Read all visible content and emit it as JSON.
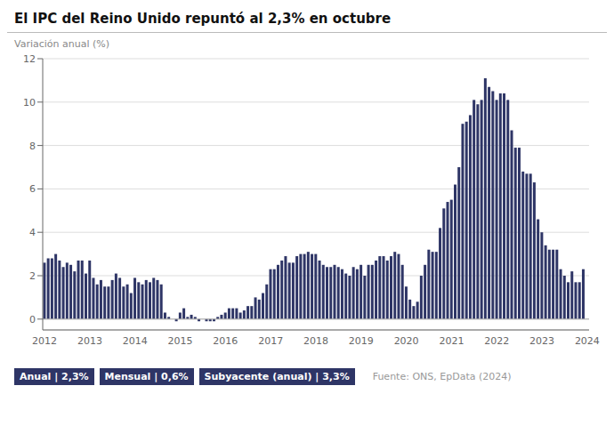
{
  "chart_data": {
    "type": "bar",
    "title": "El IPC del Reino Unido repuntó al 2,3% en octubre",
    "y_label": "Variación anual (%)",
    "color": "#2e3566",
    "ylim": [
      -0.5,
      12
    ],
    "yticks": [
      0,
      2,
      4,
      6,
      8,
      10,
      12
    ],
    "grid": true,
    "categories": [
      "2012",
      null,
      null,
      null,
      null,
      null,
      null,
      null,
      null,
      null,
      null,
      null,
      "2013",
      null,
      null,
      null,
      null,
      null,
      null,
      null,
      null,
      null,
      null,
      null,
      "2014",
      null,
      null,
      null,
      null,
      null,
      null,
      null,
      null,
      null,
      null,
      null,
      "2015",
      null,
      null,
      null,
      null,
      null,
      null,
      null,
      null,
      null,
      null,
      null,
      "2016",
      null,
      null,
      null,
      null,
      null,
      null,
      null,
      null,
      null,
      null,
      null,
      "2017",
      null,
      null,
      null,
      null,
      null,
      null,
      null,
      null,
      null,
      null,
      null,
      "2018",
      null,
      null,
      null,
      null,
      null,
      null,
      null,
      null,
      null,
      null,
      null,
      "2019",
      null,
      null,
      null,
      null,
      null,
      null,
      null,
      null,
      null,
      null,
      null,
      "2020",
      null,
      null,
      null,
      null,
      null,
      null,
      null,
      null,
      null,
      null,
      null,
      "2021",
      null,
      null,
      null,
      null,
      null,
      null,
      null,
      null,
      null,
      null,
      null,
      "2022",
      null,
      null,
      null,
      null,
      null,
      null,
      null,
      null,
      null,
      null,
      null,
      "2023",
      null,
      null,
      null,
      null,
      null,
      null,
      null,
      null,
      null,
      null,
      null,
      "2024"
    ],
    "values": [
      2.6,
      2.8,
      2.8,
      3.0,
      2.7,
      2.4,
      2.6,
      2.5,
      2.2,
      2.7,
      2.7,
      2.1,
      2.7,
      1.9,
      1.6,
      1.8,
      1.5,
      1.5,
      1.8,
      2.1,
      1.9,
      1.5,
      1.6,
      1.2,
      1.9,
      1.7,
      1.6,
      1.8,
      1.7,
      1.9,
      1.8,
      1.6,
      0.3,
      0.1,
      0.0,
      -0.1,
      0.3,
      0.5,
      0.1,
      0.2,
      0.1,
      -0.1,
      0.0,
      -0.1,
      -0.1,
      -0.1,
      0.1,
      0.2,
      0.3,
      0.5,
      0.5,
      0.5,
      0.3,
      0.4,
      0.6,
      0.6,
      1.0,
      0.9,
      1.2,
      1.6,
      2.3,
      2.3,
      2.5,
      2.7,
      2.9,
      2.6,
      2.6,
      2.9,
      3.0,
      3.0,
      3.1,
      3.0,
      3.0,
      2.7,
      2.5,
      2.4,
      2.4,
      2.5,
      2.4,
      2.3,
      2.1,
      2.0,
      2.4,
      2.3,
      2.5,
      2.0,
      2.5,
      2.5,
      2.7,
      2.9,
      2.9,
      2.7,
      2.9,
      3.1,
      3.0,
      2.5,
      1.5,
      0.9,
      0.6,
      0.8,
      2.0,
      2.5,
      3.2,
      3.1,
      3.1,
      4.2,
      5.1,
      5.4,
      5.5,
      6.2,
      7.0,
      9.0,
      9.1,
      9.4,
      10.1,
      9.9,
      10.1,
      11.1,
      10.7,
      10.5,
      10.1,
      10.4,
      10.4,
      10.1,
      8.7,
      7.9,
      7.9,
      6.8,
      6.7,
      6.7,
      6.3,
      4.6,
      4.0,
      3.4,
      3.2,
      3.2,
      3.2,
      2.3,
      2.0,
      1.7,
      2.2,
      1.7,
      1.7,
      2.3,
      null
    ],
    "annotations": [
      {
        "text": "Anual | 2,3%",
        "color": "#2e3566"
      },
      {
        "text": "Mensual | 0,6%",
        "color": "#2e3566"
      },
      {
        "text": "Subyacente (anual) | 3,3%",
        "color": "#2e3566"
      },
      {
        "text": "Fuente: ONS, EpData (2024)"
      }
    ]
  }
}
